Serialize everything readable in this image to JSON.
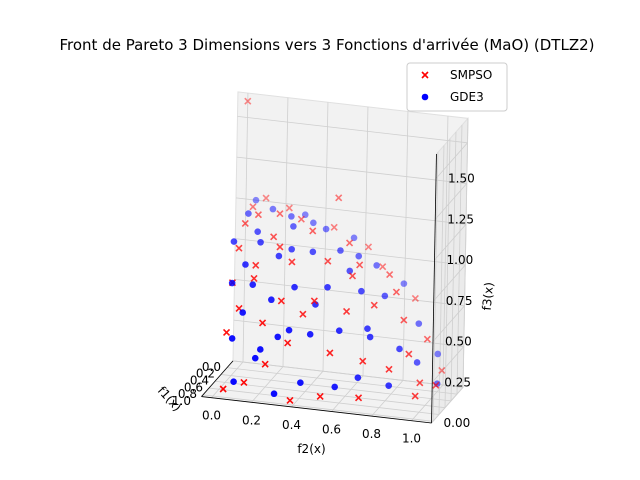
{
  "chart_data": {
    "type": "scatter",
    "title": "Front de Pareto 3 Dimensions vers 3 Fonctions d'arrivée (MaO) (DTLZ2)",
    "axes": {
      "x": {
        "label": "f1(x)",
        "ticks": [
          "0.0",
          "0.2",
          "0.4",
          "0.6",
          "0.8",
          "1.0"
        ],
        "range": [
          0,
          1.05
        ]
      },
      "y": {
        "label": "f2(x)",
        "ticks": [
          "0.0",
          "0.2",
          "0.4",
          "0.6",
          "0.8",
          "1.0"
        ],
        "range": [
          -0.05,
          1.1
        ]
      },
      "z": {
        "label": "f3(x)",
        "ticks": [
          "0.00",
          "0.25",
          "0.50",
          "0.75",
          "1.00",
          "1.25",
          "1.50"
        ],
        "range": [
          0,
          1.65
        ]
      }
    },
    "grid": true,
    "legend": {
      "position": "top-right",
      "entries": [
        "SMPSO",
        "GDE3"
      ]
    },
    "series": [
      {
        "name": "SMPSO",
        "marker": "x",
        "color": "#ff0000",
        "points": [
          [
            0.0,
            0.0,
            1.6
          ],
          [
            0.0,
            0.1,
            1.02
          ],
          [
            0.02,
            0.22,
            0.98
          ],
          [
            0.05,
            0.45,
            0.9
          ],
          [
            0.03,
            0.62,
            0.8
          ],
          [
            0.04,
            0.86,
            0.52
          ],
          [
            0.05,
            1.0,
            0.1
          ],
          [
            0.1,
            0.05,
            0.98
          ],
          [
            0.15,
            0.3,
            0.95
          ],
          [
            0.2,
            0.55,
            0.85
          ],
          [
            0.18,
            0.75,
            0.68
          ],
          [
            0.22,
            0.95,
            0.32
          ],
          [
            0.25,
            0.1,
            0.97
          ],
          [
            0.3,
            0.38,
            0.92
          ],
          [
            0.32,
            0.62,
            0.75
          ],
          [
            0.35,
            0.85,
            0.45
          ],
          [
            0.38,
            1.02,
            0.08
          ],
          [
            0.4,
            0.2,
            0.88
          ],
          [
            0.45,
            0.48,
            0.78
          ],
          [
            0.48,
            0.72,
            0.55
          ],
          [
            0.5,
            0.9,
            0.28
          ],
          [
            0.55,
            0.05,
            0.82
          ],
          [
            0.58,
            0.32,
            0.78
          ],
          [
            0.6,
            0.6,
            0.52
          ],
          [
            0.62,
            0.82,
            0.2
          ],
          [
            0.65,
            0.15,
            0.75
          ],
          [
            0.68,
            0.45,
            0.58
          ],
          [
            0.7,
            0.7,
            0.25
          ],
          [
            0.75,
            0.05,
            0.65
          ],
          [
            0.78,
            0.3,
            0.58
          ],
          [
            0.8,
            0.55,
            0.3
          ],
          [
            0.82,
            0.7,
            0.05
          ],
          [
            0.85,
            0.1,
            0.52
          ],
          [
            0.88,
            0.35,
            0.35
          ],
          [
            0.9,
            0.52,
            0.05
          ],
          [
            0.92,
            0.05,
            0.38
          ],
          [
            0.95,
            0.25,
            0.22
          ],
          [
            0.97,
            0.38,
            0.02
          ],
          [
            1.0,
            0.05,
            0.05
          ],
          [
            0.98,
            0.15,
            0.1
          ],
          [
            0.12,
            0.48,
            1.1
          ],
          [
            0.28,
            0.8,
            0.6
          ],
          [
            0.42,
            0.6,
            0.7
          ],
          [
            0.52,
            0.25,
            0.85
          ],
          [
            0.72,
            0.4,
            0.5
          ],
          [
            0.86,
            0.22,
            0.45
          ],
          [
            0.08,
            0.7,
            0.7
          ],
          [
            0.6,
            0.95,
            0.05
          ],
          [
            0.35,
            0.05,
            0.93
          ],
          [
            0.45,
            0.95,
            0.1
          ],
          [
            0.7,
            0.15,
            0.68
          ],
          [
            0.2,
            0.2,
            0.98
          ]
        ]
      },
      {
        "name": "GDE3",
        "marker": "o",
        "color": "#0000ff",
        "points": [
          [
            0.0,
            0.05,
            1.0
          ],
          [
            0.02,
            0.3,
            0.95
          ],
          [
            0.05,
            0.55,
            0.85
          ],
          [
            0.03,
            0.8,
            0.6
          ],
          [
            0.06,
            0.98,
            0.2
          ],
          [
            0.1,
            0.15,
            0.98
          ],
          [
            0.12,
            0.42,
            0.9
          ],
          [
            0.15,
            0.68,
            0.72
          ],
          [
            0.18,
            0.9,
            0.4
          ],
          [
            0.2,
            1.0,
            0.05
          ],
          [
            0.25,
            0.05,
            0.97
          ],
          [
            0.28,
            0.28,
            0.93
          ],
          [
            0.3,
            0.52,
            0.82
          ],
          [
            0.33,
            0.75,
            0.58
          ],
          [
            0.35,
            0.92,
            0.2
          ],
          [
            0.4,
            0.12,
            0.9
          ],
          [
            0.42,
            0.4,
            0.82
          ],
          [
            0.45,
            0.65,
            0.62
          ],
          [
            0.48,
            0.85,
            0.3
          ],
          [
            0.52,
            0.02,
            0.85
          ],
          [
            0.55,
            0.25,
            0.8
          ],
          [
            0.58,
            0.5,
            0.65
          ],
          [
            0.6,
            0.72,
            0.38
          ],
          [
            0.62,
            0.82,
            0.1
          ],
          [
            0.66,
            0.1,
            0.75
          ],
          [
            0.68,
            0.35,
            0.65
          ],
          [
            0.7,
            0.58,
            0.42
          ],
          [
            0.72,
            0.68,
            0.15
          ],
          [
            0.76,
            0.05,
            0.65
          ],
          [
            0.78,
            0.25,
            0.58
          ],
          [
            0.8,
            0.45,
            0.4
          ],
          [
            0.82,
            0.58,
            0.1
          ],
          [
            0.86,
            0.12,
            0.5
          ],
          [
            0.88,
            0.3,
            0.38
          ],
          [
            0.9,
            0.42,
            0.12
          ],
          [
            0.93,
            0.08,
            0.35
          ],
          [
            0.95,
            0.2,
            0.25
          ],
          [
            0.97,
            0.3,
            0.05
          ],
          [
            0.99,
            0.1,
            0.1
          ],
          [
            0.15,
            0.25,
            0.96
          ],
          [
            0.38,
            0.58,
            0.72
          ],
          [
            0.5,
            0.15,
            0.86
          ],
          [
            0.64,
            0.45,
            0.55
          ],
          [
            0.74,
            0.15,
            0.65
          ],
          [
            0.84,
            0.35,
            0.42
          ],
          [
            0.08,
            0.35,
            0.92
          ],
          [
            0.22,
            0.6,
            0.78
          ],
          [
            0.46,
            0.3,
            0.83
          ],
          [
            0.56,
            0.7,
            0.42
          ],
          [
            0.92,
            0.22,
            0.3
          ]
        ]
      }
    ]
  }
}
